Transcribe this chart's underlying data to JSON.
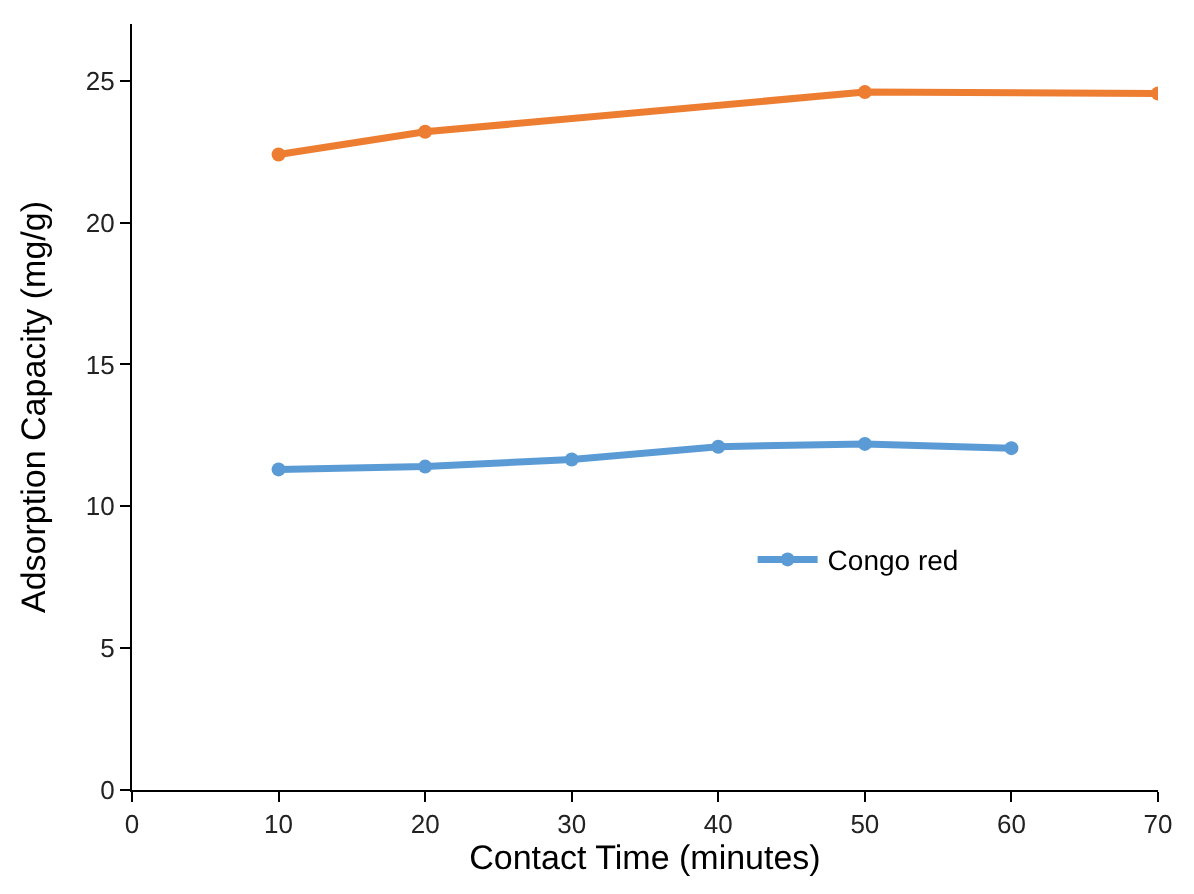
{
  "chart_data": {
    "type": "line",
    "xlabel": "Contact Time (minutes)",
    "ylabel": "Adsorption Capacity (mg/g)",
    "xlim": [
      0,
      70
    ],
    "xticks": [
      0,
      10,
      20,
      30,
      40,
      50,
      60,
      70
    ],
    "ylim": [
      0,
      27
    ],
    "yticks": [
      0,
      5,
      10,
      15,
      20,
      25
    ],
    "legend": "right",
    "marker": "circle",
    "line_style": "solid",
    "series": [
      {
        "name": "Congo red",
        "color": "#5b9bd5",
        "x": [
          10,
          20,
          30,
          40,
          50,
          60
        ],
        "values": [
          11.3,
          11.4,
          11.65,
          12.1,
          12.2,
          12.05
        ]
      },
      {
        "color": "#ed7d31",
        "x": [
          10,
          20,
          50,
          70
        ],
        "values": [
          22.4,
          23.2,
          24.6,
          24.55
        ]
      }
    ]
  }
}
